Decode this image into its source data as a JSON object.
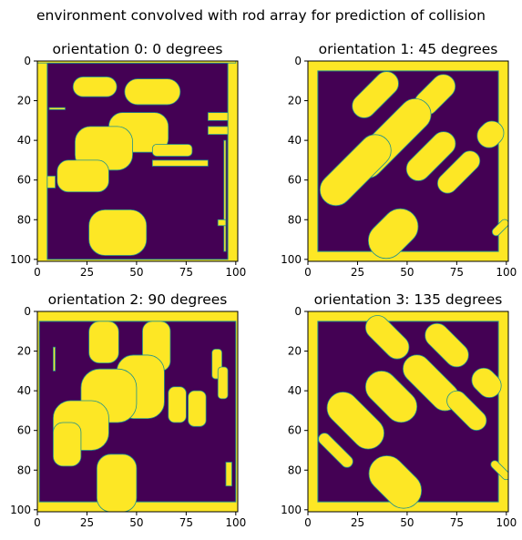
{
  "figure": {
    "suptitle": "environment convolved with rod array for prediction of collision"
  },
  "colors": {
    "background_value_color": "#440154",
    "obstacle_value_color": "#fde725",
    "edge_color": "#21918c"
  },
  "chart_data": [
    {
      "type": "heatmap",
      "title": "orientation 0: 0 degrees",
      "xlim": [
        0,
        101
      ],
      "ylim": [
        101,
        0
      ],
      "xticks": [
        "0",
        "25",
        "50",
        "75",
        "100"
      ],
      "yticks": [
        "0",
        "20",
        "40",
        "60",
        "80",
        "100"
      ],
      "border_cells": {
        "left": 5,
        "right": 5,
        "top": 1,
        "bottom": 1
      },
      "obstacles": [
        {
          "shape": "rect",
          "x": [
            5,
            9
          ],
          "y": [
            58,
            64
          ]
        },
        {
          "shape": "rect",
          "x": [
            0,
            100
          ],
          "y": [
            0,
            1
          ]
        },
        {
          "shape": "capsule",
          "x": [
            18,
            40
          ],
          "y": [
            8,
            18
          ]
        },
        {
          "shape": "capsule",
          "x": [
            44,
            72
          ],
          "y": [
            9,
            22
          ]
        },
        {
          "shape": "rect",
          "x": [
            6,
            14
          ],
          "y": [
            23.5,
            24.5
          ]
        },
        {
          "shape": "rect",
          "x": [
            86,
            96
          ],
          "y": [
            26,
            30
          ]
        },
        {
          "shape": "rect",
          "x": [
            86,
            96
          ],
          "y": [
            33,
            37
          ]
        },
        {
          "shape": "round",
          "x": [
            36,
            66
          ],
          "y": [
            26,
            46
          ]
        },
        {
          "shape": "round",
          "x": [
            19,
            48
          ],
          "y": [
            33,
            55
          ]
        },
        {
          "shape": "round",
          "x": [
            10,
            36
          ],
          "y": [
            50,
            66
          ]
        },
        {
          "shape": "round",
          "x": [
            58,
            78
          ],
          "y": [
            42,
            48
          ]
        },
        {
          "shape": "rect",
          "x": [
            58,
            86
          ],
          "y": [
            50,
            53
          ]
        },
        {
          "shape": "round",
          "x": [
            26,
            55
          ],
          "y": [
            75,
            98
          ]
        },
        {
          "shape": "rect",
          "x": [
            94,
            95
          ],
          "y": [
            40,
            96
          ]
        },
        {
          "shape": "rect",
          "x": [
            91,
            95
          ],
          "y": [
            80,
            83
          ]
        }
      ]
    },
    {
      "type": "heatmap",
      "title": "orientation 1: 45 degrees",
      "xlim": [
        0,
        101
      ],
      "ylim": [
        101,
        0
      ],
      "xticks": [
        "0",
        "25",
        "50",
        "75",
        "100"
      ],
      "yticks": [
        "0",
        "20",
        "40",
        "60",
        "80",
        "100"
      ],
      "border_cells": {
        "left": 5,
        "right": 5,
        "top": 5,
        "bottom": 5
      },
      "obstacles": [
        {
          "shape": "diag",
          "cx": 34,
          "cy": 17,
          "len": 28,
          "w": 12
        },
        {
          "shape": "diag",
          "cx": 64,
          "cy": 17,
          "len": 24,
          "w": 12
        },
        {
          "shape": "diag",
          "cx": 42,
          "cy": 39,
          "len": 50,
          "w": 16
        },
        {
          "shape": "diag",
          "cx": 24,
          "cy": 55,
          "len": 44,
          "w": 16
        },
        {
          "shape": "diag",
          "cx": 62,
          "cy": 48,
          "len": 30,
          "w": 12
        },
        {
          "shape": "diag",
          "cx": 76,
          "cy": 56,
          "len": 26,
          "w": 10
        },
        {
          "shape": "diag",
          "cx": 92,
          "cy": 37,
          "len": 14,
          "w": 12
        },
        {
          "shape": "diag",
          "cx": 43,
          "cy": 87,
          "len": 28,
          "w": 18
        },
        {
          "shape": "diag",
          "cx": 97,
          "cy": 84,
          "len": 10,
          "w": 4
        }
      ]
    },
    {
      "type": "heatmap",
      "title": "orientation 2: 90 degrees",
      "xlim": [
        0,
        101
      ],
      "ylim": [
        101,
        0
      ],
      "xticks": [
        "0",
        "25",
        "50",
        "75",
        "100"
      ],
      "yticks": [
        "0",
        "20",
        "40",
        "60",
        "80",
        "100"
      ],
      "border_cells": {
        "left": 1,
        "right": 1,
        "top": 5,
        "bottom": 5
      },
      "obstacles": [
        {
          "shape": "round",
          "x": [
            26,
            41
          ],
          "y": [
            5,
            26
          ]
        },
        {
          "shape": "round",
          "x": [
            53,
            67
          ],
          "y": [
            5,
            30
          ]
        },
        {
          "shape": "rect",
          "x": [
            8,
            9
          ],
          "y": [
            18,
            30
          ]
        },
        {
          "shape": "round",
          "x": [
            88,
            93
          ],
          "y": [
            19,
            34
          ]
        },
        {
          "shape": "round",
          "x": [
            91,
            96
          ],
          "y": [
            28,
            44
          ]
        },
        {
          "shape": "round",
          "x": [
            40,
            64
          ],
          "y": [
            22,
            54
          ]
        },
        {
          "shape": "round",
          "x": [
            22,
            50
          ],
          "y": [
            29,
            56
          ]
        },
        {
          "shape": "round",
          "x": [
            8,
            36
          ],
          "y": [
            45,
            70
          ]
        },
        {
          "shape": "round",
          "x": [
            8,
            22
          ],
          "y": [
            56,
            78
          ]
        },
        {
          "shape": "round",
          "x": [
            66,
            75
          ],
          "y": [
            38,
            56
          ]
        },
        {
          "shape": "round",
          "x": [
            76,
            85
          ],
          "y": [
            40,
            58
          ]
        },
        {
          "shape": "round",
          "x": [
            30,
            50
          ],
          "y": [
            72,
            101
          ]
        },
        {
          "shape": "rect",
          "x": [
            95,
            98
          ],
          "y": [
            76,
            88
          ]
        }
      ]
    },
    {
      "type": "heatmap",
      "title": "orientation 3: 135 degrees",
      "xlim": [
        0,
        101
      ],
      "ylim": [
        101,
        0
      ],
      "xticks": [
        "0",
        "25",
        "50",
        "75",
        "100"
      ],
      "yticks": [
        "0",
        "20",
        "40",
        "60",
        "80",
        "100"
      ],
      "border_cells": {
        "left": 5,
        "right": 5,
        "top": 5,
        "bottom": 5
      },
      "obstacles": [
        {
          "shape": "diag2",
          "cx": 40,
          "cy": 13,
          "len": 26,
          "w": 12
        },
        {
          "shape": "diag2",
          "cx": 70,
          "cy": 17,
          "len": 26,
          "w": 12
        },
        {
          "shape": "diag2",
          "cx": 62,
          "cy": 36,
          "len": 34,
          "w": 14
        },
        {
          "shape": "diag2",
          "cx": 42,
          "cy": 43,
          "len": 30,
          "w": 16
        },
        {
          "shape": "diag2",
          "cx": 24,
          "cy": 55,
          "len": 34,
          "w": 16
        },
        {
          "shape": "diag2",
          "cx": 80,
          "cy": 50,
          "len": 24,
          "w": 10
        },
        {
          "shape": "diag2",
          "cx": 90,
          "cy": 36,
          "len": 16,
          "w": 12
        },
        {
          "shape": "diag2",
          "cx": 44,
          "cy": 86,
          "len": 30,
          "w": 18
        },
        {
          "shape": "diag2",
          "cx": 14,
          "cy": 70,
          "len": 22,
          "w": 6
        },
        {
          "shape": "diag2",
          "cx": 97,
          "cy": 80,
          "len": 12,
          "w": 4
        }
      ]
    }
  ]
}
